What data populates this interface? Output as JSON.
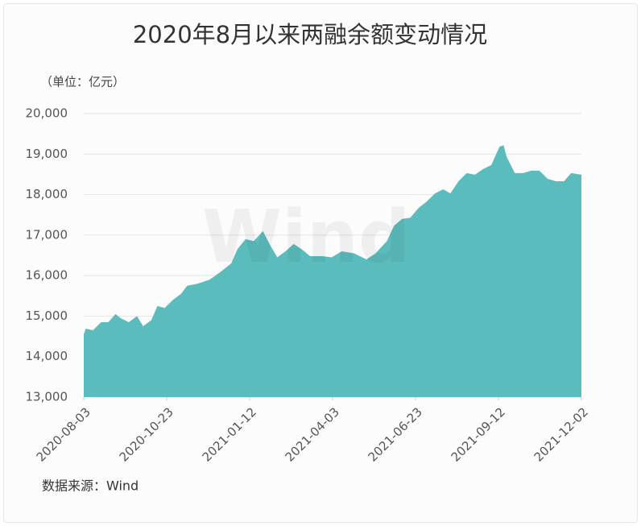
{
  "chart_data": {
    "type": "area",
    "title": "2020年8月以来两融余额变动情况",
    "subtitle": "（单位：亿元）",
    "source": "数据来源：Wind",
    "watermark": "Wind",
    "color": "#5bbcbd",
    "x": [
      "2020-08-03",
      "2020-08-05",
      "2020-08-12",
      "2020-08-16",
      "2020-08-20",
      "2020-08-27",
      "2020-09-03",
      "2020-09-08",
      "2020-09-16",
      "2020-09-24",
      "2020-09-30",
      "2020-10-08",
      "2020-10-14",
      "2020-10-21",
      "2020-10-29",
      "2020-11-06",
      "2020-11-12",
      "2020-11-22",
      "2020-12-04",
      "2020-12-15",
      "2020-12-25",
      "2020-12-31",
      "2021-01-08",
      "2021-01-16",
      "2021-01-25",
      "2021-02-01",
      "2021-02-08",
      "2021-02-16",
      "2021-02-24",
      "2021-03-04",
      "2021-03-12",
      "2021-03-24",
      "2021-04-02",
      "2021-04-12",
      "2021-04-24",
      "2021-05-06",
      "2021-05-15",
      "2021-05-26",
      "2021-06-02",
      "2021-06-10",
      "2021-06-18",
      "2021-06-26",
      "2021-07-04",
      "2021-07-12",
      "2021-07-20",
      "2021-07-27",
      "2021-08-04",
      "2021-08-12",
      "2021-08-20",
      "2021-08-28",
      "2021-09-05",
      "2021-09-13",
      "2021-09-17",
      "2021-09-20",
      "2021-09-28",
      "2021-10-06",
      "2021-10-14",
      "2021-10-22",
      "2021-10-30",
      "2021-11-07",
      "2021-11-15",
      "2021-11-22",
      "2021-12-02"
    ],
    "values": [
      14550,
      14690,
      14650,
      14750,
      14850,
      14850,
      15050,
      14950,
      14850,
      15000,
      14750,
      14900,
      15250,
      15200,
      15400,
      15550,
      15750,
      15800,
      15900,
      16100,
      16300,
      16650,
      16900,
      16850,
      17100,
      16750,
      16450,
      16600,
      16780,
      16650,
      16480,
      16480,
      16450,
      16600,
      16550,
      16400,
      16550,
      16850,
      17230,
      17400,
      17430,
      17670,
      17830,
      18030,
      18130,
      18030,
      18330,
      18530,
      18490,
      18630,
      18730,
      19180,
      19220,
      18930,
      18530,
      18530,
      18590,
      18590,
      18390,
      18330,
      18330,
      18530,
      18490
    ],
    "xlim": [
      "2020-08-03",
      "2021-12-02"
    ],
    "xticks": [
      "2020-08-03",
      "2020-10-23",
      "2021-01-12",
      "2021-04-03",
      "2021-06-23",
      "2021-09-12",
      "2021-12-02"
    ],
    "ylim": [
      13000,
      20000
    ],
    "yticks": [
      {
        "value": 13000,
        "label": "13,000"
      },
      {
        "value": 14000,
        "label": "14,000"
      },
      {
        "value": 15000,
        "label": "15,000"
      },
      {
        "value": 16000,
        "label": "16,000"
      },
      {
        "value": 17000,
        "label": "17,000"
      },
      {
        "value": 18000,
        "label": "18,000"
      },
      {
        "value": 19000,
        "label": "19,000"
      },
      {
        "value": 20000,
        "label": "20,000"
      }
    ],
    "grid": true
  }
}
